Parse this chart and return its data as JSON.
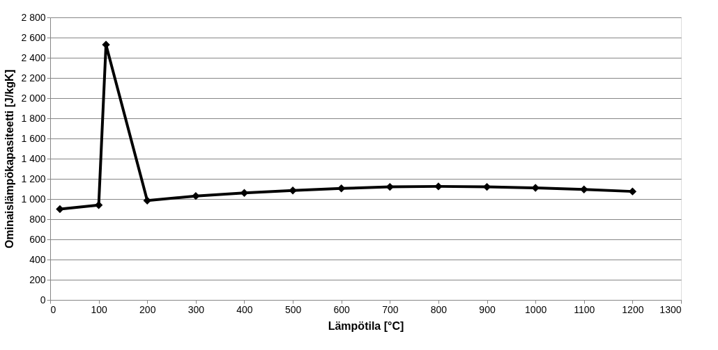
{
  "chart_data": {
    "type": "line",
    "xlabel": "Lämpötila [°C]",
    "ylabel": "Ominaislämpökapasiteetti [J/kgK]",
    "x": [
      20,
      100,
      115,
      200,
      300,
      400,
      500,
      600,
      700,
      800,
      900,
      1000,
      1100,
      1200
    ],
    "series": [
      {
        "color": "#000000",
        "values": [
          900,
          940,
          2530,
          985,
          1030,
          1060,
          1085,
          1105,
          1120,
          1125,
          1120,
          1110,
          1095,
          1075
        ]
      }
    ],
    "xlim": [
      0,
      1300
    ],
    "xticks": [
      0,
      100,
      200,
      300,
      400,
      500,
      600,
      700,
      800,
      900,
      1000,
      1100,
      1200,
      1300
    ],
    "ylim": [
      0,
      2800
    ],
    "yticks": [
      0,
      200,
      400,
      600,
      800,
      {
        "value": 1000,
        "label": "1 000"
      },
      {
        "value": 1200,
        "label": "1 200"
      },
      {
        "value": 1400,
        "label": "1 400"
      },
      {
        "value": 1600,
        "label": "1 600"
      },
      {
        "value": 1800,
        "label": "1 800"
      },
      {
        "value": 2000,
        "label": "2 000"
      },
      {
        "value": 2200,
        "label": "2 200"
      },
      {
        "value": 2400,
        "label": "2 400"
      },
      {
        "value": 2600,
        "label": "2 600"
      },
      {
        "value": 2800,
        "label": "2 800"
      }
    ],
    "grid": "y",
    "marker": "diamond",
    "line_style": "solid"
  }
}
